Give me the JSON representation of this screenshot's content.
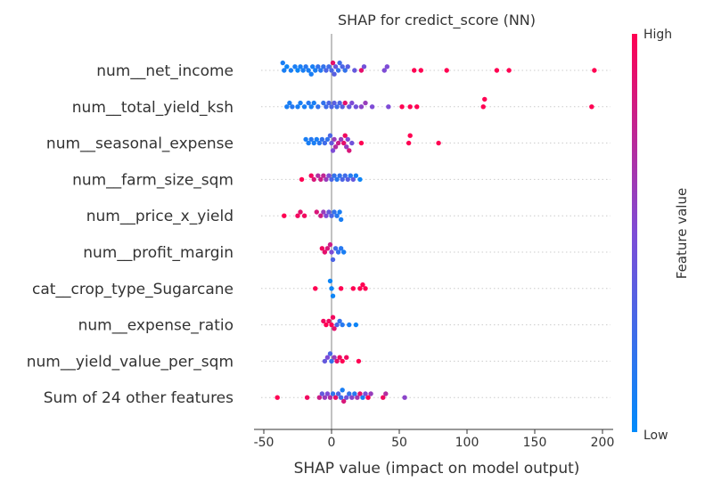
{
  "chart_data": {
    "type": "scatter",
    "title": "SHAP for credict_score (NN)",
    "xlabel": "SHAP value (impact on model output)",
    "xlim": [
      -51,
      205
    ],
    "xticks": [
      -50,
      0,
      50,
      100,
      150,
      200
    ],
    "colorbar": {
      "label": "Feature value",
      "high_label": "High",
      "low_label": "Low",
      "low_color": "#008bfb",
      "mid_color": "#7e4cd6",
      "high_color": "#ff0052"
    },
    "features": [
      {
        "name": "num__net_income",
        "points": [
          {
            "x": -36,
            "v": 0.1
          },
          {
            "x": -35,
            "v": 0.1
          },
          {
            "x": -33,
            "v": 0.05
          },
          {
            "x": -30,
            "v": 0.1
          },
          {
            "x": -27,
            "v": 0.1
          },
          {
            "x": -25,
            "v": 0.05
          },
          {
            "x": -23,
            "v": 0.1
          },
          {
            "x": -21,
            "v": 0.1
          },
          {
            "x": -19,
            "v": 0.15
          },
          {
            "x": -17,
            "v": 0.1
          },
          {
            "x": -15,
            "v": 0.1
          },
          {
            "x": -14,
            "v": 0.1
          },
          {
            "x": -12,
            "v": 0.1
          },
          {
            "x": -10,
            "v": 0.2
          },
          {
            "x": -8,
            "v": 0.15
          },
          {
            "x": -6,
            "v": 0.2
          },
          {
            "x": -4,
            "v": 0.3
          },
          {
            "x": -2,
            "v": 0.25
          },
          {
            "x": 0,
            "v": 0.3
          },
          {
            "x": 1,
            "v": 0.9
          },
          {
            "x": 2,
            "v": 0.35
          },
          {
            "x": 3,
            "v": 0.4
          },
          {
            "x": 5,
            "v": 0.2
          },
          {
            "x": 6,
            "v": 0.25
          },
          {
            "x": 8,
            "v": 0.3
          },
          {
            "x": 10,
            "v": 0.2
          },
          {
            "x": 12,
            "v": 0.35
          },
          {
            "x": 17,
            "v": 0.4
          },
          {
            "x": 22,
            "v": 0.9
          },
          {
            "x": 24,
            "v": 0.45
          },
          {
            "x": 39,
            "v": 0.5
          },
          {
            "x": 41,
            "v": 0.5
          },
          {
            "x": 61,
            "v": 1.0
          },
          {
            "x": 66,
            "v": 1.0
          },
          {
            "x": 85,
            "v": 1.0
          },
          {
            "x": 122,
            "v": 1.0
          },
          {
            "x": 131,
            "v": 1.0
          },
          {
            "x": 194,
            "v": 1.0
          }
        ]
      },
      {
        "name": "num__total_yield_ksh",
        "points": [
          {
            "x": -33,
            "v": 0.1
          },
          {
            "x": -31,
            "v": 0.1
          },
          {
            "x": -29,
            "v": 0.15
          },
          {
            "x": -25,
            "v": 0.1
          },
          {
            "x": -23,
            "v": 0.1
          },
          {
            "x": -20,
            "v": 0.1
          },
          {
            "x": -17,
            "v": 0.15
          },
          {
            "x": -15,
            "v": 0.1
          },
          {
            "x": -13,
            "v": 0.1
          },
          {
            "x": -10,
            "v": 0.2
          },
          {
            "x": -6,
            "v": 0.2
          },
          {
            "x": -4,
            "v": 0.25
          },
          {
            "x": -2,
            "v": 0.3
          },
          {
            "x": 0,
            "v": 0.3
          },
          {
            "x": 2,
            "v": 0.35
          },
          {
            "x": 4,
            "v": 0.25
          },
          {
            "x": 6,
            "v": 0.3
          },
          {
            "x": 8,
            "v": 0.35
          },
          {
            "x": 10,
            "v": 0.9
          },
          {
            "x": 13,
            "v": 0.4
          },
          {
            "x": 15,
            "v": 0.5
          },
          {
            "x": 18,
            "v": 0.45
          },
          {
            "x": 22,
            "v": 0.55
          },
          {
            "x": 25,
            "v": 0.6
          },
          {
            "x": 30,
            "v": 0.5
          },
          {
            "x": 42,
            "v": 0.5
          },
          {
            "x": 52,
            "v": 1.0
          },
          {
            "x": 58,
            "v": 1.0
          },
          {
            "x": 63,
            "v": 1.0
          },
          {
            "x": 112,
            "v": 1.0
          },
          {
            "x": 113,
            "v": 1.0
          },
          {
            "x": 192,
            "v": 1.0
          }
        ]
      },
      {
        "name": "num__seasonal_expense",
        "points": [
          {
            "x": -19,
            "v": 0.1
          },
          {
            "x": -17,
            "v": 0.1
          },
          {
            "x": -15,
            "v": 0.15
          },
          {
            "x": -13,
            "v": 0.1
          },
          {
            "x": -11,
            "v": 0.1
          },
          {
            "x": -9,
            "v": 0.15
          },
          {
            "x": -7,
            "v": 0.2
          },
          {
            "x": -5,
            "v": 0.25
          },
          {
            "x": -3,
            "v": 0.2
          },
          {
            "x": -1,
            "v": 0.3
          },
          {
            "x": 0,
            "v": 0.4
          },
          {
            "x": 1,
            "v": 0.5
          },
          {
            "x": 2,
            "v": 0.6
          },
          {
            "x": 3,
            "v": 0.7
          },
          {
            "x": 5,
            "v": 0.8
          },
          {
            "x": 7,
            "v": 0.6
          },
          {
            "x": 9,
            "v": 0.9
          },
          {
            "x": 10,
            "v": 0.95
          },
          {
            "x": 11,
            "v": 0.6
          },
          {
            "x": 12,
            "v": 0.5
          },
          {
            "x": 13,
            "v": 0.85
          },
          {
            "x": 15,
            "v": 0.45
          },
          {
            "x": 22,
            "v": 1.0
          },
          {
            "x": 57,
            "v": 1.0
          },
          {
            "x": 58,
            "v": 1.0
          },
          {
            "x": 79,
            "v": 1.0
          }
        ]
      },
      {
        "name": "num__farm_size_sqm",
        "points": [
          {
            "x": -22,
            "v": 1.0
          },
          {
            "x": -15,
            "v": 0.95
          },
          {
            "x": -13,
            "v": 0.85
          },
          {
            "x": -10,
            "v": 0.7
          },
          {
            "x": -8,
            "v": 0.8
          },
          {
            "x": -6,
            "v": 0.75
          },
          {
            "x": -4,
            "v": 0.6
          },
          {
            "x": -2,
            "v": 0.5
          },
          {
            "x": 0,
            "v": 0.3
          },
          {
            "x": 2,
            "v": 0.2
          },
          {
            "x": 4,
            "v": 0.15
          },
          {
            "x": 6,
            "v": 0.2
          },
          {
            "x": 8,
            "v": 0.3
          },
          {
            "x": 10,
            "v": 0.25
          },
          {
            "x": 12,
            "v": 0.35
          },
          {
            "x": 14,
            "v": 0.15
          },
          {
            "x": 16,
            "v": 0.4
          },
          {
            "x": 18,
            "v": 0.1
          },
          {
            "x": 21,
            "v": 0.05
          }
        ]
      },
      {
        "name": "num__price_x_yield",
        "points": [
          {
            "x": -35,
            "v": 1.0
          },
          {
            "x": -25,
            "v": 0.95
          },
          {
            "x": -23,
            "v": 0.9
          },
          {
            "x": -20,
            "v": 0.95
          },
          {
            "x": -11,
            "v": 0.85
          },
          {
            "x": -8,
            "v": 0.8
          },
          {
            "x": -6,
            "v": 0.6
          },
          {
            "x": -4,
            "v": 0.5
          },
          {
            "x": -2,
            "v": 0.4
          },
          {
            "x": 0,
            "v": 0.3
          },
          {
            "x": 2,
            "v": 0.2
          },
          {
            "x": 4,
            "v": 0.15
          },
          {
            "x": 6,
            "v": 0.1
          },
          {
            "x": 7,
            "v": 0.1
          }
        ]
      },
      {
        "name": "num__profit_margin",
        "points": [
          {
            "x": -7,
            "v": 0.95
          },
          {
            "x": -5,
            "v": 0.9
          },
          {
            "x": -3,
            "v": 0.85
          },
          {
            "x": -1,
            "v": 0.8
          },
          {
            "x": 0,
            "v": 0.5
          },
          {
            "x": 1,
            "v": 0.3
          },
          {
            "x": 3,
            "v": 0.25
          },
          {
            "x": 5,
            "v": 0.2
          },
          {
            "x": 7,
            "v": 0.15
          },
          {
            "x": 9,
            "v": 0.1
          }
        ]
      },
      {
        "name": "cat__crop_type_Sugarcane",
        "points": [
          {
            "x": -12,
            "v": 1.0
          },
          {
            "x": -1,
            "v": 0.05
          },
          {
            "x": 0,
            "v": 0.05
          },
          {
            "x": 1,
            "v": 0.05
          },
          {
            "x": 7,
            "v": 1.0
          },
          {
            "x": 16,
            "v": 1.0
          },
          {
            "x": 21,
            "v": 1.0
          },
          {
            "x": 23,
            "v": 1.0
          },
          {
            "x": 25,
            "v": 1.0
          }
        ]
      },
      {
        "name": "num__expense_ratio",
        "points": [
          {
            "x": -6,
            "v": 0.95
          },
          {
            "x": -4,
            "v": 1.0
          },
          {
            "x": -2,
            "v": 0.95
          },
          {
            "x": 0,
            "v": 1.0
          },
          {
            "x": 1,
            "v": 0.95
          },
          {
            "x": 2,
            "v": 0.9
          },
          {
            "x": 4,
            "v": 0.3
          },
          {
            "x": 6,
            "v": 0.2
          },
          {
            "x": 8,
            "v": 0.15
          },
          {
            "x": 13,
            "v": 0.1
          },
          {
            "x": 18,
            "v": 0.05
          }
        ]
      },
      {
        "name": "num__yield_value_per_sqm",
        "points": [
          {
            "x": -5,
            "v": 0.4
          },
          {
            "x": -3,
            "v": 0.5
          },
          {
            "x": -1,
            "v": 0.3
          },
          {
            "x": 0,
            "v": 0.2
          },
          {
            "x": 2,
            "v": 0.6
          },
          {
            "x": 4,
            "v": 0.9
          },
          {
            "x": 6,
            "v": 0.95
          },
          {
            "x": 8,
            "v": 1.0
          },
          {
            "x": 11,
            "v": 0.95
          },
          {
            "x": 20,
            "v": 1.0
          }
        ]
      },
      {
        "name": "Sum of 24 other features",
        "points": [
          {
            "x": -40,
            "v": 1.0
          },
          {
            "x": -18,
            "v": 0.95
          },
          {
            "x": -9,
            "v": 0.8
          },
          {
            "x": -7,
            "v": 0.4
          },
          {
            "x": -5,
            "v": 0.6
          },
          {
            "x": -3,
            "v": 0.5
          },
          {
            "x": -1,
            "v": 0.7
          },
          {
            "x": 1,
            "v": 0.2
          },
          {
            "x": 3,
            "v": 0.9
          },
          {
            "x": 5,
            "v": 0.3
          },
          {
            "x": 7,
            "v": 0.25
          },
          {
            "x": 9,
            "v": 0.85
          },
          {
            "x": 11,
            "v": 0.45
          },
          {
            "x": 13,
            "v": 0.2
          },
          {
            "x": 15,
            "v": 0.55
          },
          {
            "x": 17,
            "v": 0.15
          },
          {
            "x": 19,
            "v": 0.65
          },
          {
            "x": 21,
            "v": 0.9
          },
          {
            "x": 23,
            "v": 0.1
          },
          {
            "x": 25,
            "v": 0.5
          },
          {
            "x": 27,
            "v": 1.0
          },
          {
            "x": 29,
            "v": 0.6
          },
          {
            "x": 38,
            "v": 0.95
          },
          {
            "x": 40,
            "v": 0.7
          },
          {
            "x": 54,
            "v": 0.55
          },
          {
            "x": 8,
            "v": 0.1
          }
        ]
      }
    ]
  }
}
